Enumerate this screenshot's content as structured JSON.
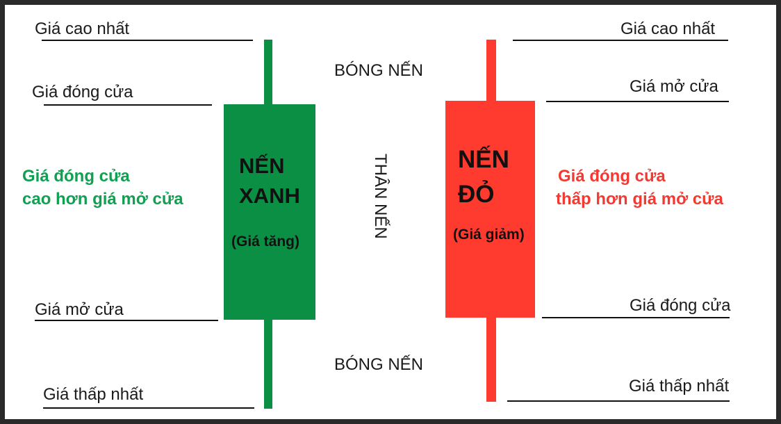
{
  "colors": {
    "green": "#0a8f45",
    "red": "#ff3b30",
    "green_text": "#11a052",
    "red_text": "#f23a32"
  },
  "green_candle": {
    "title_line1": "NẾN",
    "title_line2": "XANH",
    "subtitle": "(Giá tăng)",
    "labels": {
      "high": "Giá cao nhất",
      "close": "Giá đóng cửa",
      "open": "Giá mở cửa",
      "low": "Giá thấp nhất"
    },
    "note_line1": "Giá đóng cửa",
    "note_line2": "cao hơn giá mở cửa"
  },
  "red_candle": {
    "title_line1": "NẾN",
    "title_line2": "ĐỎ",
    "subtitle": "(Giá giảm)",
    "labels": {
      "high": "Giá cao nhất",
      "open": "Giá mở cửa",
      "close": "Giá đóng cửa",
      "low": "Giá thấp nhất"
    },
    "note_line1": "Giá đóng cửa",
    "note_line2": "thấp hơn giá mở cửa"
  },
  "center": {
    "shadow_top": "BÓNG NẾN",
    "body": "THÂN NẾN",
    "shadow_bottom": "BÓNG NẾN"
  }
}
